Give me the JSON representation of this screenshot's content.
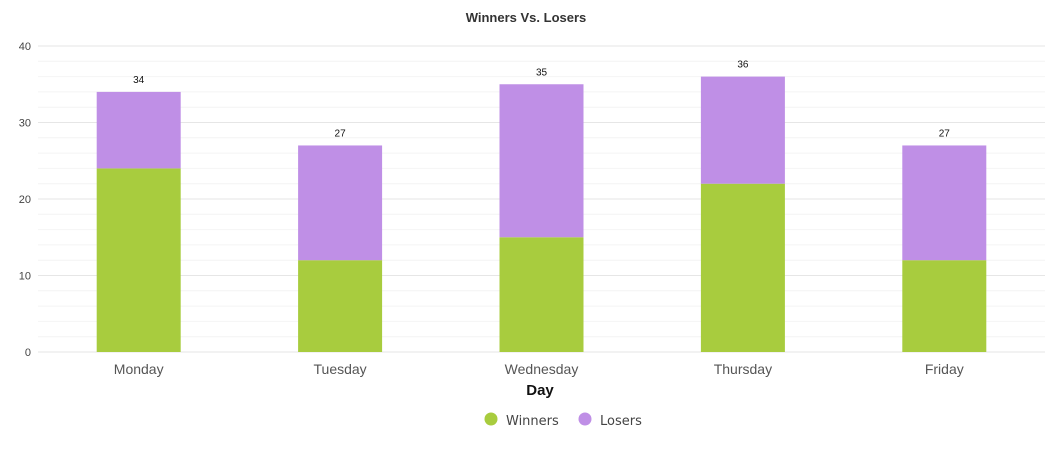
{
  "chart_data": {
    "type": "bar",
    "stacked": true,
    "title": "Winners Vs. Losers",
    "xlabel": "Day",
    "ylabel": "",
    "categories": [
      "Monday",
      "Tuesday",
      "Wednesday",
      "Thursday",
      "Friday"
    ],
    "series": [
      {
        "name": "Winners",
        "values": [
          24,
          12,
          15,
          22,
          12
        ],
        "color": "#a8cc3e"
      },
      {
        "name": "Losers",
        "values": [
          10,
          15,
          20,
          14,
          15
        ],
        "color": "#bf8fe6"
      }
    ],
    "totals": [
      34,
      27,
      35,
      36,
      27
    ],
    "ylim": [
      0,
      40
    ],
    "yticks": [
      0,
      10,
      20,
      30,
      40
    ],
    "grid": true,
    "legend_position": "bottom-center"
  }
}
